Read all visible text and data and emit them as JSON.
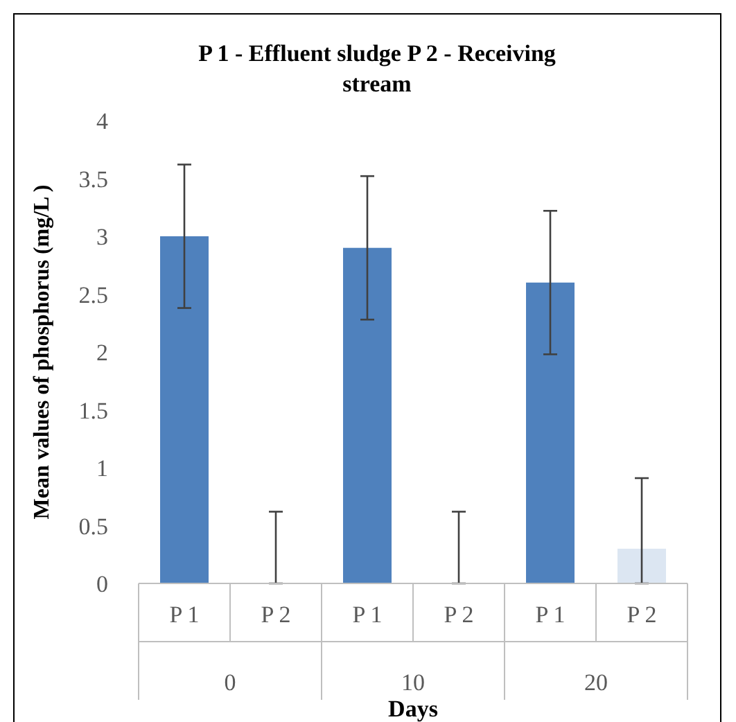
{
  "chart_data": {
    "type": "bar",
    "title": "P 1 - Effluent sludge P 2 - Receiving stream",
    "xlabel": "Days",
    "ylabel": "Mean values of phosphorus (mg/L )",
    "categories": [
      "P 1",
      "P 2",
      "P 1",
      "P 2",
      "P 1",
      "P 2"
    ],
    "values": [
      3,
      0,
      2.9,
      0,
      2.6,
      0.3
    ],
    "colors": [
      "#4f81bd",
      "#dce6f2",
      "#4f81bd",
      "#dce6f2",
      "#4f81bd",
      "#dce6f2"
    ],
    "errors": [
      0.62,
      [
        0,
        0.62
      ],
      0.62,
      [
        0,
        0.62
      ],
      0.62,
      [
        0,
        0.91
      ]
    ],
    "annotations": [
      "0",
      "10",
      "20"
    ],
    "ylim": [
      0,
      4
    ],
    "yticks": [
      0,
      0.5,
      1,
      1.5,
      2,
      2.5,
      3,
      3.5,
      4
    ],
    "grid": false
  }
}
